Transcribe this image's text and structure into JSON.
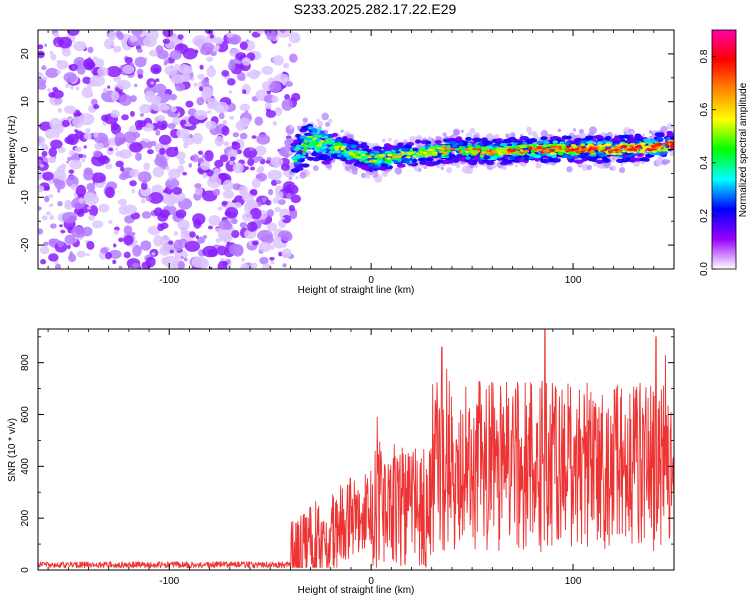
{
  "title": "S233.2025.282.17.22.E29",
  "chart_data": [
    {
      "type": "heatmap",
      "xlabel": "Height of straight line (km)",
      "ylabel": "Frequency (Hz)",
      "xlim": [
        -165,
        150
      ],
      "ylim": [
        -25,
        25
      ],
      "x_ticks": [
        -100,
        0,
        100
      ],
      "y_ticks": [
        -20,
        -10,
        0,
        10,
        20
      ],
      "noise_region_x": [
        -165,
        -40
      ],
      "signal_onset_x": -40,
      "centerline": {
        "x": [
          -40,
          -30,
          -20,
          0,
          20,
          40,
          60,
          80,
          100,
          120,
          140,
          150
        ],
        "y": [
          -3,
          2,
          1,
          -2,
          -1,
          0,
          -0.5,
          0,
          0,
          0,
          0.5,
          1
        ]
      },
      "colorbar": {
        "label": "Normalized spectral amplitude",
        "range": [
          0.0,
          0.9
        ],
        "ticks": [
          0.0,
          0.2,
          0.4,
          0.6,
          0.8
        ],
        "colors": [
          "#ffffff",
          "#9900ff",
          "#0000ff",
          "#00ffff",
          "#00ff00",
          "#ffff00",
          "#ff8800",
          "#ff0000",
          "#ff00aa"
        ]
      }
    },
    {
      "type": "line",
      "xlabel": "Height of straight line (km)",
      "ylabel": "SNR (10 * v/v)",
      "xlim": [
        -165,
        150
      ],
      "ylim": [
        0,
        930
      ],
      "x_ticks": [
        -100,
        0,
        100
      ],
      "y_ticks": [
        0,
        200,
        400,
        600,
        800
      ],
      "color": "#ee3333",
      "segments": [
        {
          "x_range": [
            -165,
            -40
          ],
          "mean": 20,
          "amplitude": 12
        },
        {
          "x_range": [
            -40,
            0
          ],
          "mean_start": 40,
          "mean_end": 250,
          "amplitude": 160
        },
        {
          "x_range": [
            0,
            30
          ],
          "mean": 250,
          "amplitude": 250
        },
        {
          "x_range": [
            30,
            150
          ],
          "mean": 400,
          "amplitude": 330
        }
      ],
      "peaks": [
        {
          "x": 3,
          "y": 590
        },
        {
          "x": 35,
          "y": 860
        },
        {
          "x": 86,
          "y": 930
        },
        {
          "x": 141,
          "y": 900
        }
      ]
    }
  ]
}
